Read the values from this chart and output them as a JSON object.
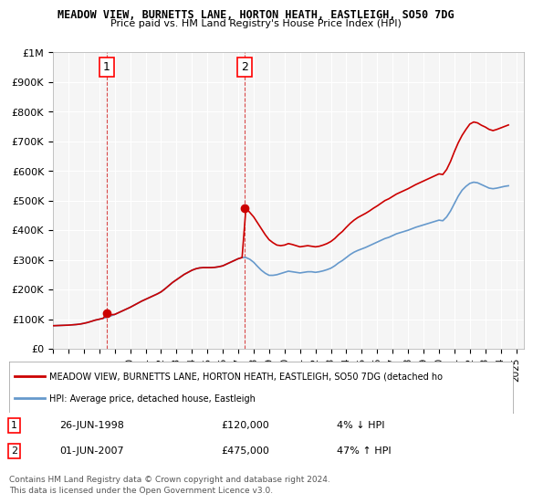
{
  "title1": "MEADOW VIEW, BURNETTS LANE, HORTON HEATH, EASTLEIGH, SO50 7DG",
  "title2": "Price paid vs. HM Land Registry's House Price Index (HPI)",
  "background_color": "#ffffff",
  "plot_background": "#f5f5f5",
  "grid_color": "#ffffff",
  "hpi_color": "#6699cc",
  "price_color": "#cc0000",
  "dashed_line_color": "#cc0000",
  "ylim": [
    0,
    1000000
  ],
  "yticks": [
    0,
    100000,
    200000,
    300000,
    400000,
    500000,
    600000,
    700000,
    800000,
    900000,
    1000000
  ],
  "ytick_labels": [
    "£0",
    "£100K",
    "£200K",
    "£300K",
    "£400K",
    "£500K",
    "£600K",
    "£700K",
    "£800K",
    "£900K",
    "£1M"
  ],
  "xlim_start": 1995.0,
  "xlim_end": 2025.5,
  "transaction1_x": 1998.48,
  "transaction1_y": 120000,
  "transaction1_label": "1",
  "transaction2_x": 2007.42,
  "transaction2_y": 475000,
  "transaction2_label": "2",
  "legend_line1": "MEADOW VIEW, BURNETTS LANE, HORTON HEATH, EASTLEIGH, SO50 7DG (detached ho",
  "legend_line2": "HPI: Average price, detached house, Eastleigh",
  "table_row1": [
    "1",
    "26-JUN-1998",
    "£120,000",
    "4% ↓ HPI"
  ],
  "table_row2": [
    "2",
    "01-JUN-2007",
    "£475,000",
    "47% ↑ HPI"
  ],
  "footer1": "Contains HM Land Registry data © Crown copyright and database right 2024.",
  "footer2": "This data is licensed under the Open Government Licence v3.0.",
  "hpi_data_x": [
    1995.0,
    1995.25,
    1995.5,
    1995.75,
    1996.0,
    1996.25,
    1996.5,
    1996.75,
    1997.0,
    1997.25,
    1997.5,
    1997.75,
    1998.0,
    1998.25,
    1998.5,
    1998.75,
    1999.0,
    1999.25,
    1999.5,
    1999.75,
    2000.0,
    2000.25,
    2000.5,
    2000.75,
    2001.0,
    2001.25,
    2001.5,
    2001.75,
    2002.0,
    2002.25,
    2002.5,
    2002.75,
    2003.0,
    2003.25,
    2003.5,
    2003.75,
    2004.0,
    2004.25,
    2004.5,
    2004.75,
    2005.0,
    2005.25,
    2005.5,
    2005.75,
    2006.0,
    2006.25,
    2006.5,
    2006.75,
    2007.0,
    2007.25,
    2007.5,
    2007.75,
    2008.0,
    2008.25,
    2008.5,
    2008.75,
    2009.0,
    2009.25,
    2009.5,
    2009.75,
    2010.0,
    2010.25,
    2010.5,
    2010.75,
    2011.0,
    2011.25,
    2011.5,
    2011.75,
    2012.0,
    2012.25,
    2012.5,
    2012.75,
    2013.0,
    2013.25,
    2013.5,
    2013.75,
    2014.0,
    2014.25,
    2014.5,
    2014.75,
    2015.0,
    2015.25,
    2015.5,
    2015.75,
    2016.0,
    2016.25,
    2016.5,
    2016.75,
    2017.0,
    2017.25,
    2017.5,
    2017.75,
    2018.0,
    2018.25,
    2018.5,
    2018.75,
    2019.0,
    2019.25,
    2019.5,
    2019.75,
    2020.0,
    2020.25,
    2020.5,
    2020.75,
    2021.0,
    2021.25,
    2021.5,
    2021.75,
    2022.0,
    2022.25,
    2022.5,
    2022.75,
    2023.0,
    2023.25,
    2023.5,
    2023.75,
    2024.0,
    2024.25,
    2024.5
  ],
  "hpi_data_y": [
    78000,
    78500,
    79000,
    79500,
    80000,
    81000,
    82000,
    83500,
    86000,
    89000,
    93000,
    97000,
    100000,
    103000,
    107000,
    111000,
    116000,
    122000,
    128000,
    134000,
    140000,
    147000,
    154000,
    161000,
    167000,
    173000,
    179000,
    185000,
    192000,
    202000,
    213000,
    224000,
    233000,
    242000,
    251000,
    258000,
    265000,
    270000,
    273000,
    274000,
    274000,
    274000,
    275000,
    277000,
    280000,
    286000,
    292000,
    298000,
    304000,
    308000,
    308000,
    302000,
    292000,
    278000,
    265000,
    255000,
    248000,
    248000,
    250000,
    254000,
    258000,
    262000,
    260000,
    258000,
    256000,
    258000,
    260000,
    260000,
    258000,
    260000,
    263000,
    267000,
    272000,
    280000,
    290000,
    298000,
    308000,
    318000,
    326000,
    332000,
    337000,
    342000,
    348000,
    354000,
    360000,
    366000,
    372000,
    376000,
    382000,
    388000,
    392000,
    396000,
    400000,
    405000,
    410000,
    414000,
    418000,
    422000,
    426000,
    430000,
    434000,
    432000,
    445000,
    465000,
    490000,
    515000,
    535000,
    548000,
    558000,
    562000,
    560000,
    554000,
    548000,
    542000,
    540000,
    542000,
    545000,
    548000,
    550000
  ],
  "price_data_x": [
    1995.0,
    1995.25,
    1995.5,
    1995.75,
    1996.0,
    1996.25,
    1996.5,
    1996.75,
    1997.0,
    1997.25,
    1997.5,
    1997.75,
    1998.0,
    1998.25,
    1998.5,
    1998.75,
    1999.0,
    1999.25,
    1999.5,
    1999.75,
    2000.0,
    2000.25,
    2000.5,
    2000.75,
    2001.0,
    2001.25,
    2001.5,
    2001.75,
    2002.0,
    2002.25,
    2002.5,
    2002.75,
    2003.0,
    2003.25,
    2003.5,
    2003.75,
    2004.0,
    2004.25,
    2004.5,
    2004.75,
    2005.0,
    2005.25,
    2005.5,
    2005.75,
    2006.0,
    2006.25,
    2006.5,
    2006.75,
    2007.0,
    2007.25,
    2007.5,
    2007.75,
    2008.0,
    2008.25,
    2008.5,
    2008.75,
    2009.0,
    2009.25,
    2009.5,
    2009.75,
    2010.0,
    2010.25,
    2010.5,
    2010.75,
    2011.0,
    2011.25,
    2011.5,
    2011.75,
    2012.0,
    2012.25,
    2012.5,
    2012.75,
    2013.0,
    2013.25,
    2013.5,
    2013.75,
    2014.0,
    2014.25,
    2014.5,
    2014.75,
    2015.0,
    2015.25,
    2015.5,
    2015.75,
    2016.0,
    2016.25,
    2016.5,
    2016.75,
    2017.0,
    2017.25,
    2017.5,
    2017.75,
    2018.0,
    2018.25,
    2018.5,
    2018.75,
    2019.0,
    2019.25,
    2019.5,
    2019.75,
    2020.0,
    2020.25,
    2020.5,
    2020.75,
    2021.0,
    2021.25,
    2021.5,
    2021.75,
    2022.0,
    2022.25,
    2022.5,
    2022.75,
    2023.0,
    2023.25,
    2023.5,
    2023.75,
    2024.0,
    2024.25,
    2024.5
  ],
  "price_data_y": [
    78000,
    78500,
    79000,
    79500,
    80000,
    81000,
    82000,
    83500,
    86000,
    89000,
    93000,
    97000,
    100000,
    103000,
    120000,
    115000,
    116000,
    122000,
    128000,
    134000,
    140000,
    147000,
    154000,
    161000,
    167000,
    173000,
    179000,
    185000,
    192000,
    202000,
    213000,
    224000,
    233000,
    242000,
    251000,
    258000,
    265000,
    270000,
    273000,
    274000,
    274000,
    274000,
    275000,
    277000,
    280000,
    286000,
    292000,
    298000,
    304000,
    308000,
    475000,
    460000,
    445000,
    425000,
    405000,
    385000,
    368000,
    358000,
    350000,
    348000,
    350000,
    355000,
    352000,
    348000,
    344000,
    346000,
    348000,
    346000,
    344000,
    346000,
    350000,
    355000,
    362000,
    372000,
    385000,
    396000,
    410000,
    423000,
    434000,
    443000,
    450000,
    457000,
    465000,
    474000,
    482000,
    491000,
    500000,
    506000,
    514000,
    522000,
    528000,
    534000,
    540000,
    547000,
    554000,
    560000,
    566000,
    572000,
    578000,
    584000,
    590000,
    588000,
    605000,
    632000,
    665000,
    695000,
    720000,
    740000,
    758000,
    765000,
    762000,
    754000,
    748000,
    740000,
    736000,
    740000,
    745000,
    750000,
    755000
  ],
  "xtick_years": [
    1995,
    1996,
    1997,
    1998,
    1999,
    2000,
    2001,
    2002,
    2003,
    2004,
    2005,
    2006,
    2007,
    2008,
    2009,
    2010,
    2011,
    2012,
    2013,
    2014,
    2015,
    2016,
    2017,
    2018,
    2019,
    2020,
    2021,
    2022,
    2023,
    2024,
    2025
  ]
}
